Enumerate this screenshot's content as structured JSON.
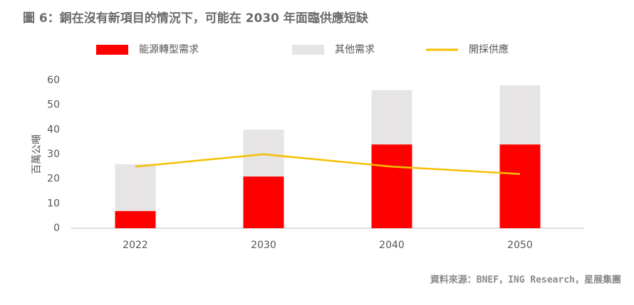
{
  "chart_data": {
    "type": "bar",
    "stacked": true,
    "title": "圖 6：銅在沒有新項目的情況下，可能在 2030 年面臨供應短缺",
    "ylabel": "百萬公噸",
    "source": "資料來源：BNEF，ING Research，星展集團",
    "categories": [
      "2022",
      "2030",
      "2040",
      "2050"
    ],
    "series": [
      {
        "name": "能源轉型需求",
        "color": "#ff0000",
        "type": "bar",
        "values": [
          7,
          21,
          34,
          34
        ]
      },
      {
        "name": "其他需求",
        "color": "#e6e4e5",
        "type": "bar",
        "values": [
          19,
          19,
          22,
          24
        ]
      },
      {
        "name": "開採供應",
        "color": "#f5c000",
        "type": "line",
        "values": [
          25,
          30,
          25,
          22
        ]
      }
    ],
    "ylim": [
      0,
      60
    ],
    "yticks": [
      0,
      10,
      20,
      30,
      40,
      50,
      60
    ],
    "grid": false
  }
}
